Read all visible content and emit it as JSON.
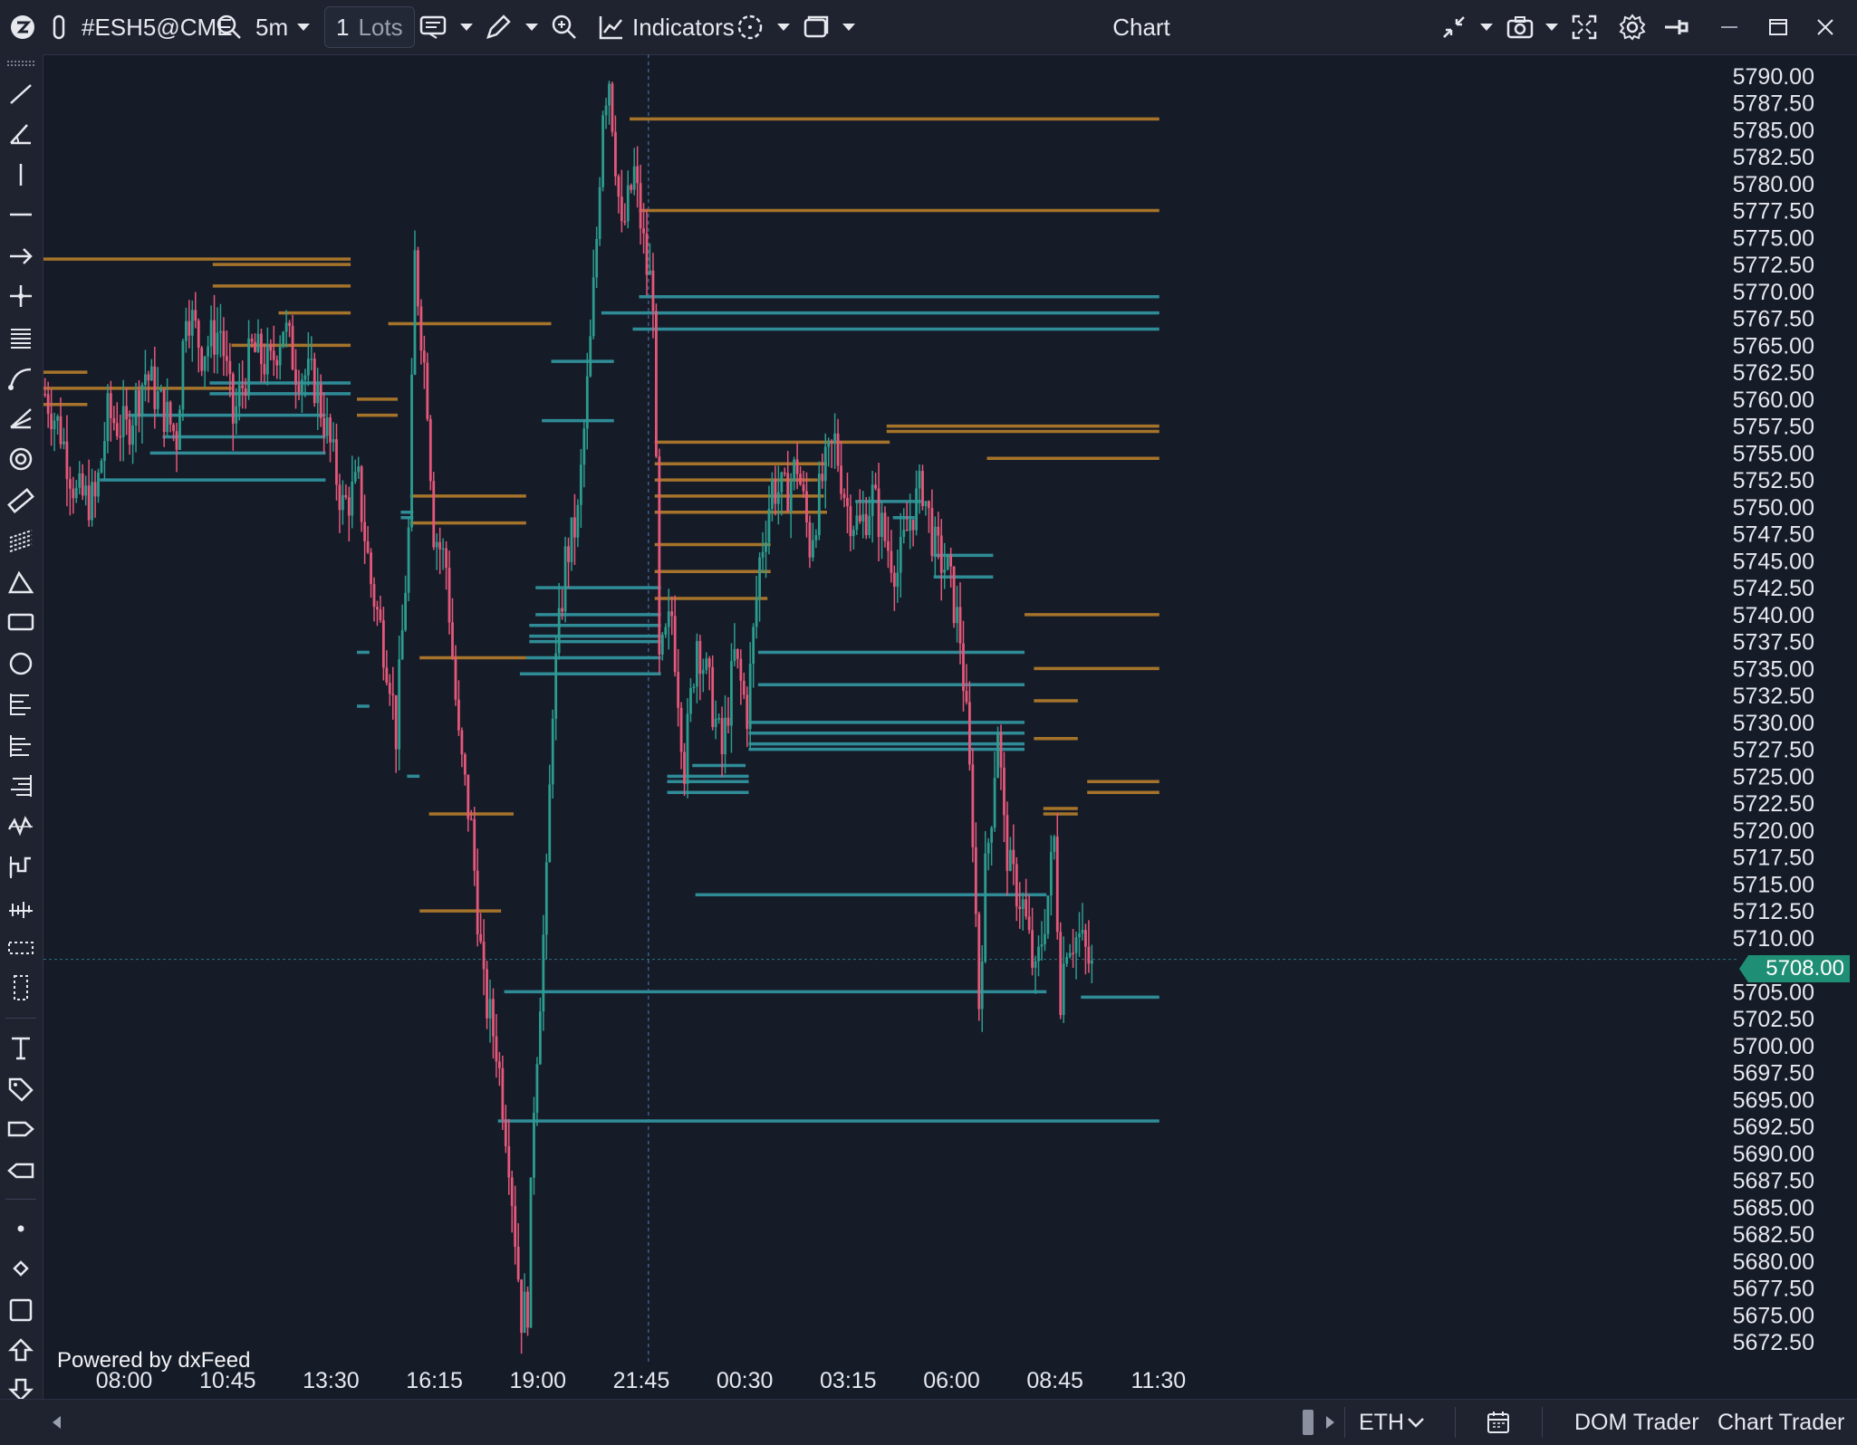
{
  "toolbar": {
    "symbol": "#ESH5@CME",
    "timeframe": "5m",
    "lots_value": "1",
    "lots_unit": "Lots",
    "indicators_label": "Indicators",
    "window_title": "Chart"
  },
  "bottom": {
    "session": "ETH",
    "dom_trader": "DOM Trader",
    "chart_trader": "Chart Trader"
  },
  "watermark": "Powered by dxFeed",
  "current_price": "5708.00",
  "colors": {
    "background": "#161b28",
    "bullish": "#2c9c8e",
    "bearish": "#e5587a",
    "resistance_line": "#a5742a",
    "support_line": "#2f8c97",
    "price_tag": "#1e8e74"
  },
  "chart_data": {
    "type": "candlestick",
    "ylim": [
      5671,
      5792
    ],
    "y_ticks": [
      "5790.00",
      "5787.50",
      "5785.00",
      "5782.50",
      "5780.00",
      "5777.50",
      "5775.00",
      "5772.50",
      "5770.00",
      "5767.50",
      "5765.00",
      "5762.50",
      "5760.00",
      "5757.50",
      "5755.00",
      "5752.50",
      "5750.00",
      "5747.50",
      "5745.00",
      "5742.50",
      "5740.00",
      "5737.50",
      "5735.00",
      "5732.50",
      "5730.00",
      "5727.50",
      "5725.00",
      "5722.50",
      "5720.00",
      "5717.50",
      "5715.00",
      "5712.50",
      "5710.00",
      "5705.00",
      "5702.50",
      "5700.00",
      "5697.50",
      "5695.00",
      "5692.50",
      "5690.00",
      "5687.50",
      "5685.00",
      "5682.50",
      "5680.00",
      "5677.50",
      "5675.00",
      "5672.50"
    ],
    "x_ticks": [
      "08:00",
      "10:45",
      "13:30",
      "16:15",
      "19:00",
      "21:45",
      "00:30",
      "03:15",
      "06:00",
      "08:45",
      "11:30"
    ],
    "x_tick_index": [
      24,
      57,
      90,
      123,
      156,
      189,
      222,
      255,
      288,
      321,
      354
    ],
    "session_break_index": 193,
    "last_price": 5708.0,
    "candle_path": [
      [
        0,
        5760.5
      ],
      [
        5,
        5757
      ],
      [
        10,
        5751
      ],
      [
        16,
        5750.5
      ],
      [
        20,
        5758.5
      ],
      [
        26,
        5757
      ],
      [
        32,
        5762.5
      ],
      [
        36,
        5760
      ],
      [
        42,
        5756.5
      ],
      [
        45,
        5769
      ],
      [
        50,
        5764.5
      ],
      [
        56,
        5766.5
      ],
      [
        60,
        5758
      ],
      [
        66,
        5764.5
      ],
      [
        72,
        5763
      ],
      [
        76,
        5767
      ],
      [
        80,
        5763
      ],
      [
        86,
        5761.5
      ],
      [
        90,
        5757
      ],
      [
        95,
        5750
      ],
      [
        100,
        5752
      ],
      [
        104,
        5743
      ],
      [
        110,
        5734.5
      ],
      [
        112,
        5729
      ],
      [
        116,
        5747.5
      ],
      [
        118,
        5773
      ],
      [
        122,
        5760
      ],
      [
        124,
        5748
      ],
      [
        128,
        5744.5
      ],
      [
        132,
        5728
      ],
      [
        136,
        5720
      ],
      [
        140,
        5705
      ],
      [
        144,
        5700
      ],
      [
        148,
        5690
      ],
      [
        152,
        5675
      ],
      [
        154,
        5676
      ],
      [
        156,
        5695
      ],
      [
        160,
        5715
      ],
      [
        162,
        5732
      ],
      [
        166,
        5745
      ],
      [
        170,
        5749
      ],
      [
        174,
        5765
      ],
      [
        176,
        5775
      ],
      [
        178,
        5787.5
      ],
      [
        180,
        5790
      ],
      [
        184,
        5775
      ],
      [
        188,
        5781
      ],
      [
        192,
        5772
      ],
      [
        194,
        5770
      ],
      [
        196,
        5735
      ],
      [
        200,
        5740
      ],
      [
        204,
        5726
      ],
      [
        208,
        5738
      ],
      [
        212,
        5733
      ],
      [
        216,
        5727
      ],
      [
        220,
        5736
      ],
      [
        224,
        5731
      ],
      [
        228,
        5745
      ],
      [
        232,
        5752
      ],
      [
        236,
        5751
      ],
      [
        240,
        5754
      ],
      [
        244,
        5746.5
      ],
      [
        248,
        5752.5
      ],
      [
        252,
        5756
      ],
      [
        256,
        5750
      ],
      [
        260,
        5748
      ],
      [
        264,
        5751
      ],
      [
        268,
        5747
      ],
      [
        272,
        5744
      ],
      [
        276,
        5749
      ],
      [
        280,
        5752
      ],
      [
        284,
        5746
      ],
      [
        288,
        5744
      ],
      [
        292,
        5738
      ],
      [
        294,
        5730
      ],
      [
        296,
        5720
      ],
      [
        298,
        5704
      ],
      [
        300,
        5716
      ],
      [
        302,
        5722
      ],
      [
        304,
        5730
      ],
      [
        306,
        5720
      ],
      [
        308,
        5716
      ],
      [
        312,
        5713
      ],
      [
        316,
        5706
      ],
      [
        320,
        5714
      ],
      [
        322,
        5719
      ],
      [
        324,
        5705
      ],
      [
        326,
        5710
      ],
      [
        330,
        5710
      ],
      [
        334,
        5707
      ]
    ],
    "horizontal_levels": {
      "resistance": [
        [
          5793,
          0,
          187
        ],
        [
          5773,
          0,
          98
        ],
        [
          5772.5,
          54,
          98
        ],
        [
          5770.5,
          54,
          98
        ],
        [
          5768,
          75,
          98
        ],
        [
          5765,
          60,
          98
        ],
        [
          5762.5,
          0,
          14
        ],
        [
          5761,
          0,
          60
        ],
        [
          5760,
          100,
          113
        ],
        [
          5758.5,
          100,
          113
        ],
        [
          5759.5,
          0,
          14
        ],
        [
          5767,
          110,
          162
        ],
        [
          5751,
          117,
          154
        ],
        [
          5748.5,
          117,
          154
        ],
        [
          5736,
          120,
          154
        ],
        [
          5721.5,
          123,
          150
        ],
        [
          5712.5,
          120,
          146
        ],
        [
          5786,
          187,
          356
        ],
        [
          5777.5,
          190,
          356
        ],
        [
          5757.5,
          269,
          356
        ],
        [
          5757,
          269,
          356
        ],
        [
          5756,
          195,
          270
        ],
        [
          5754,
          195,
          250
        ],
        [
          5752.5,
          195,
          247
        ],
        [
          5751,
          195,
          249
        ],
        [
          5749.5,
          195,
          250
        ],
        [
          5746.5,
          195,
          232
        ],
        [
          5744,
          195,
          232
        ],
        [
          5741.5,
          195,
          231
        ],
        [
          5754.5,
          301,
          356
        ],
        [
          5740,
          313,
          356
        ],
        [
          5735,
          316,
          356
        ],
        [
          5732,
          316,
          330
        ],
        [
          5728.5,
          316,
          330
        ],
        [
          5724.5,
          333,
          356
        ],
        [
          5723.5,
          333,
          356
        ],
        [
          5722,
          319,
          330
        ],
        [
          5721.5,
          319,
          330
        ]
      ],
      "support": [
        [
          5769.5,
          190,
          356
        ],
        [
          5768,
          178,
          356
        ],
        [
          5766.5,
          188,
          356
        ],
        [
          5761.5,
          53,
          98
        ],
        [
          5760.5,
          53,
          98
        ],
        [
          5758.5,
          27,
          90
        ],
        [
          5756.5,
          38,
          90
        ],
        [
          5755,
          34,
          90
        ],
        [
          5752.5,
          18,
          90
        ],
        [
          5758,
          159,
          182
        ],
        [
          5763.5,
          162,
          182
        ],
        [
          5749.5,
          114,
          118
        ],
        [
          5749,
          114,
          118
        ],
        [
          5742.5,
          157,
          197
        ],
        [
          5740,
          157,
          197
        ],
        [
          5739,
          155,
          197
        ],
        [
          5738,
          155,
          197
        ],
        [
          5737.5,
          155,
          197
        ],
        [
          5736,
          154,
          197
        ],
        [
          5734.5,
          152,
          197
        ],
        [
          5736.5,
          228,
          313
        ],
        [
          5733.5,
          228,
          313
        ],
        [
          5730,
          225,
          313
        ],
        [
          5729,
          225,
          313
        ],
        [
          5728,
          225,
          313
        ],
        [
          5727.5,
          225,
          313
        ],
        [
          5725,
          199,
          225
        ],
        [
          5724.5,
          199,
          225
        ],
        [
          5723.5,
          199,
          225
        ],
        [
          5714,
          208,
          320
        ],
        [
          5705,
          147,
          320
        ],
        [
          5704.5,
          331,
          356
        ],
        [
          5693,
          145,
          356
        ],
        [
          5750.5,
          259,
          280
        ],
        [
          5749,
          271,
          278
        ],
        [
          5745.5,
          284,
          303
        ],
        [
          5743.5,
          284,
          303
        ],
        [
          5726,
          207,
          224
        ],
        [
          5736.5,
          100,
          104
        ],
        [
          5731.5,
          100,
          104
        ],
        [
          5725,
          116,
          120
        ]
      ]
    }
  }
}
